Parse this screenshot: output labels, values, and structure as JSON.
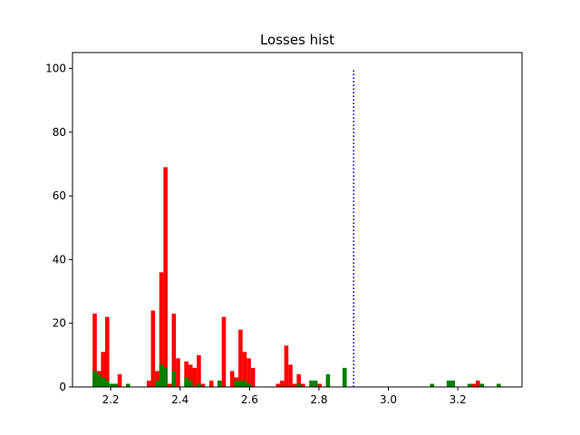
{
  "chart_data": {
    "type": "bar",
    "title": "Losses hist",
    "xlabel": "",
    "ylabel": "",
    "xlim": [
      2.09,
      3.385
    ],
    "ylim": [
      0,
      105
    ],
    "xticks": [
      2.2,
      2.4,
      2.6,
      2.8,
      3.0,
      3.2
    ],
    "xtick_labels": [
      "2.2",
      "2.4",
      "2.6",
      "2.8",
      "3.0",
      "3.2"
    ],
    "yticks": [
      0,
      20,
      40,
      60,
      80,
      100
    ],
    "ytick_labels": [
      "0",
      "20",
      "40",
      "60",
      "80",
      "100"
    ],
    "bin_width": 0.012,
    "grid": false,
    "series": [
      {
        "color": "#ff0000",
        "bins": [
          [
            2.154,
            23
          ],
          [
            2.166,
            5
          ],
          [
            2.178,
            11
          ],
          [
            2.19,
            22
          ],
          [
            2.202,
            1
          ],
          [
            2.214,
            1
          ],
          [
            2.226,
            4
          ],
          [
            2.31,
            2
          ],
          [
            2.322,
            24
          ],
          [
            2.334,
            5
          ],
          [
            2.346,
            36
          ],
          [
            2.358,
            69
          ],
          [
            2.37,
            1
          ],
          [
            2.382,
            23
          ],
          [
            2.394,
            9
          ],
          [
            2.418,
            8
          ],
          [
            2.43,
            7
          ],
          [
            2.442,
            6
          ],
          [
            2.454,
            10
          ],
          [
            2.466,
            1
          ],
          [
            2.49,
            2
          ],
          [
            2.514,
            2
          ],
          [
            2.526,
            22
          ],
          [
            2.55,
            5
          ],
          [
            2.562,
            3
          ],
          [
            2.574,
            18
          ],
          [
            2.586,
            11
          ],
          [
            2.598,
            9
          ],
          [
            2.61,
            6
          ],
          [
            2.682,
            1
          ],
          [
            2.694,
            2
          ],
          [
            2.706,
            13
          ],
          [
            2.718,
            7
          ],
          [
            2.73,
            1
          ],
          [
            2.742,
            4
          ],
          [
            2.754,
            1
          ],
          [
            2.802,
            1
          ],
          [
            3.246,
            1
          ],
          [
            3.258,
            2
          ]
        ]
      },
      {
        "color": "#008000",
        "bins": [
          [
            2.154,
            5
          ],
          [
            2.166,
            4
          ],
          [
            2.178,
            3
          ],
          [
            2.19,
            2
          ],
          [
            2.202,
            1
          ],
          [
            2.214,
            1
          ],
          [
            2.25,
            1
          ],
          [
            2.334,
            2
          ],
          [
            2.346,
            7
          ],
          [
            2.358,
            6
          ],
          [
            2.382,
            5
          ],
          [
            2.418,
            3
          ],
          [
            2.43,
            2
          ],
          [
            2.454,
            1
          ],
          [
            2.514,
            2
          ],
          [
            2.562,
            2
          ],
          [
            2.574,
            2
          ],
          [
            2.586,
            2
          ],
          [
            2.598,
            1
          ],
          [
            2.742,
            1
          ],
          [
            2.778,
            2
          ],
          [
            2.79,
            2
          ],
          [
            2.826,
            4
          ],
          [
            2.874,
            6
          ],
          [
            3.126,
            1
          ],
          [
            3.174,
            2
          ],
          [
            3.186,
            2
          ],
          [
            3.234,
            1
          ],
          [
            3.27,
            1
          ],
          [
            3.318,
            1
          ]
        ]
      }
    ],
    "annotations": [
      {
        "type": "vline",
        "x": 2.9,
        "y_from": 0,
        "y_to": 100,
        "color": "#0000bb",
        "style": "dotted"
      }
    ]
  }
}
